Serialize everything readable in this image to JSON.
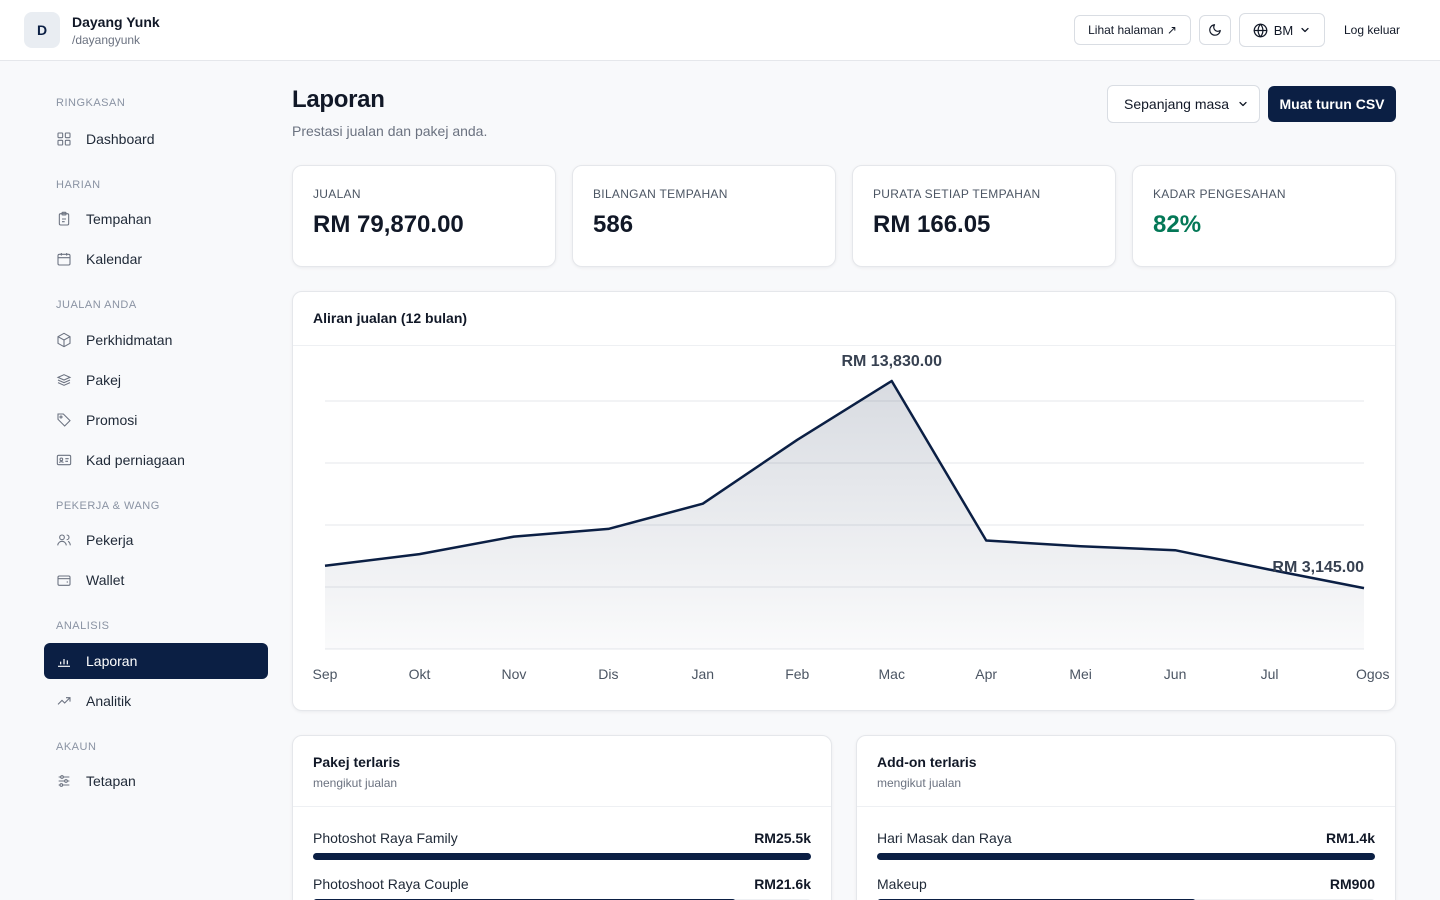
{
  "header": {
    "avatar_letter": "D",
    "user_name": "Dayang Yunk",
    "user_handle": "/dayangyunk",
    "view_page_label": "Lihat halaman ↗",
    "language_label": "BM",
    "logout_label": "Log keluar"
  },
  "sidebar": {
    "sections": [
      {
        "heading": "Ringkasan",
        "items": [
          {
            "label": "Dashboard",
            "icon": "grid-icon"
          }
        ]
      },
      {
        "heading": "Harian",
        "items": [
          {
            "label": "Tempahan",
            "icon": "clipboard-icon"
          },
          {
            "label": "Kalendar",
            "icon": "calendar-icon"
          }
        ]
      },
      {
        "heading": "Jualan anda",
        "items": [
          {
            "label": "Perkhidmatan",
            "icon": "box-icon"
          },
          {
            "label": "Pakej",
            "icon": "layers-icon"
          },
          {
            "label": "Promosi",
            "icon": "tag-icon"
          },
          {
            "label": "Kad perniagaan",
            "icon": "id-card-icon"
          }
        ]
      },
      {
        "heading": "Pekerja & wang",
        "items": [
          {
            "label": "Pekerja",
            "icon": "users-icon"
          },
          {
            "label": "Wallet",
            "icon": "wallet-icon"
          }
        ]
      },
      {
        "heading": "Analisis",
        "items": [
          {
            "label": "Laporan",
            "icon": "bar-chart-icon",
            "active": true
          },
          {
            "label": "Analitik",
            "icon": "trending-up-icon"
          }
        ]
      },
      {
        "heading": "Akaun",
        "items": [
          {
            "label": "Tetapan",
            "icon": "sliders-icon"
          }
        ]
      }
    ]
  },
  "main": {
    "title": "Laporan",
    "subtitle": "Prestasi jualan dan pakej anda.",
    "period_select": {
      "value": "Sepanjang masa"
    },
    "csv_button_label": "Muat turun CSV",
    "stats": [
      {
        "label": "Jualan",
        "value": "RM 79,870.00"
      },
      {
        "label": "Bilangan tempahan",
        "value": "586"
      },
      {
        "label": "Purata setiap tempahan",
        "value": "RM 166.05"
      },
      {
        "label": "Kadar pengesahan",
        "value": "82%"
      }
    ],
    "chart_title": "Aliran jualan (12 bulan)",
    "top_packages": {
      "title": "Pakej terlaris",
      "subtitle": "mengikut jualan",
      "rows": [
        {
          "label": "Photoshot Raya Family",
          "value": "RM25.5k",
          "share": 1.0
        },
        {
          "label": "Photoshoot Raya Couple",
          "value": "RM21.6k",
          "share": 0.85
        }
      ]
    },
    "top_addons": {
      "title": "Add-on terlaris",
      "subtitle": "mengikut jualan",
      "rows": [
        {
          "label": "Hari Masak dan Raya",
          "value": "RM1.4k",
          "share": 1.0
        },
        {
          "label": "Makeup",
          "value": "RM900",
          "share": 0.64
        }
      ]
    }
  },
  "colors": {
    "accent": "#0b1f44",
    "success": "#047857",
    "border": "#e5e7eb",
    "muted": "#6b7280"
  },
  "chart_data": {
    "type": "area",
    "title": "Aliran jualan (12 bulan)",
    "categories": [
      "Sep",
      "Okt",
      "Nov",
      "Dis",
      "Jan",
      "Feb",
      "Mac",
      "Apr",
      "Mei",
      "Jun",
      "Jul",
      "Ogos"
    ],
    "series": [
      {
        "values": [
          4300,
          4900,
          5800,
          6200,
          7500,
          10800,
          13830,
          5600,
          5300,
          5100,
          4100,
          3145
        ]
      }
    ],
    "annotations": [
      {
        "category": "Mac",
        "text": "RM 13,830.00"
      },
      {
        "category": "Ogos",
        "text": "RM 3,145.00"
      }
    ],
    "ylim": [
      0,
      16000
    ],
    "grid": true,
    "legend": "none"
  }
}
